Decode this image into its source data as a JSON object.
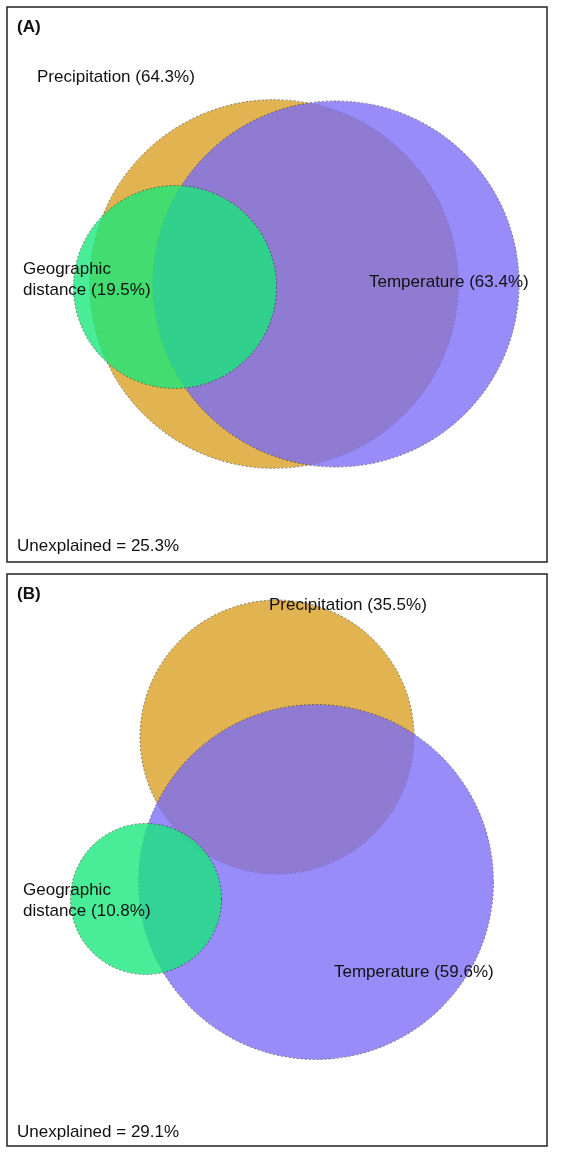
{
  "chart_data": [
    {
      "type": "other",
      "title": "(A)",
      "categories": [
        "Precipitation",
        "Temperature",
        "Geographic distance"
      ],
      "values": [
        64.3,
        63.4,
        19.5
      ],
      "value_labels": [
        "(64.3%)",
        "(63.4%)",
        "(19.5%)"
      ],
      "colors": [
        "#d9a021",
        "#7a6cf7",
        "#18e87a"
      ],
      "annotations": [
        "Unexplained = 25.3%"
      ]
    },
    {
      "type": "other",
      "title": "(B)",
      "categories": [
        "Precipitation",
        "Temperature",
        "Geographic distance"
      ],
      "values": [
        35.5,
        59.6,
        10.8
      ],
      "value_labels": [
        "(35.5%)",
        "(59.6%)",
        "(10.8%)"
      ],
      "colors": [
        "#d9a021",
        "#7a6cf7",
        "#18e87a"
      ],
      "annotations": [
        "Unexplained = 29.1%"
      ]
    }
  ]
}
